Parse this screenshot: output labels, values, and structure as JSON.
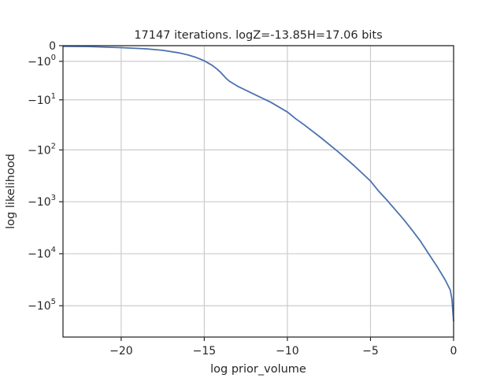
{
  "chart_data": {
    "type": "line",
    "title": "17147 iterations. logZ=-13.85H=17.06 bits",
    "xlabel": "log prior_volume",
    "ylabel": "log likelihood",
    "xlim": [
      -23.5,
      0
    ],
    "y_scale": "symlog",
    "y_linthresh": 1,
    "ylim": [
      -400000,
      0
    ],
    "grid": true,
    "x_ticks": [
      {
        "value": -20,
        "label": "−20"
      },
      {
        "value": -15,
        "label": "−15"
      },
      {
        "value": -10,
        "label": "−10"
      },
      {
        "value": -5,
        "label": "−5"
      },
      {
        "value": 0,
        "label": "0"
      }
    ],
    "y_ticks": [
      {
        "value": 0,
        "base": "0",
        "exp": ""
      },
      {
        "value": -1,
        "base": "−10",
        "exp": "0"
      },
      {
        "value": -10,
        "base": "−10",
        "exp": "1"
      },
      {
        "value": -100,
        "base": "−10",
        "exp": "2"
      },
      {
        "value": -1000,
        "base": "−10",
        "exp": "3"
      },
      {
        "value": -10000,
        "base": "−10",
        "exp": "4"
      },
      {
        "value": -100000,
        "base": "−10",
        "exp": "5"
      }
    ],
    "series": [
      {
        "color": "#4c72b0",
        "x": [
          -23.5,
          -22.0,
          -20.0,
          -18.5,
          -17.5,
          -16.5,
          -16.0,
          -15.5,
          -15.0,
          -14.5,
          -14.2,
          -14.0,
          -13.8,
          -13.7,
          -13.5,
          -13.0,
          -12.0,
          -11.0,
          -10.0,
          -9.5,
          -9.0,
          -8.0,
          -7.0,
          -6.0,
          -5.0,
          -4.5,
          -4.0,
          -3.0,
          -2.5,
          -2.0,
          -1.5,
          -1.0,
          -0.5,
          -0.2,
          -0.1,
          -0.05,
          0.0
        ],
        "y": [
          -0.03,
          -0.04,
          -0.09,
          -0.15,
          -0.23,
          -0.38,
          -0.5,
          -0.68,
          -0.95,
          -1.42,
          -1.88,
          -2.3,
          -2.85,
          -3.2,
          -3.8,
          -5.0,
          -7.6,
          -11.2,
          -17.8,
          -24.4,
          -32,
          -57,
          -105,
          -200,
          -400,
          -630,
          -940,
          -2200,
          -3500,
          -5700,
          -10000,
          -17500,
          -32000,
          -50000,
          -75000,
          -120000,
          -200000
        ]
      }
    ]
  }
}
